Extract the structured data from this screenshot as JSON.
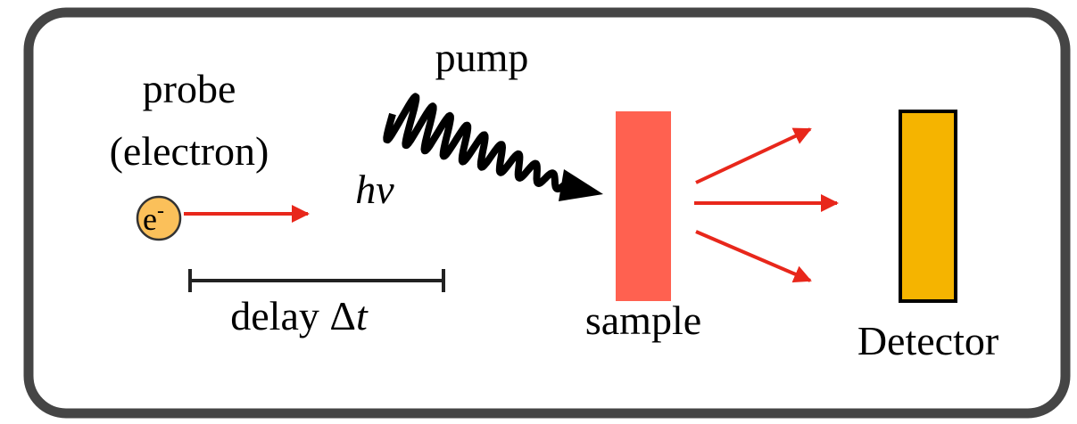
{
  "probe": {
    "title": "probe",
    "subtitle": "(electron)",
    "particle": "e",
    "charge": "-"
  },
  "pump": {
    "title": "pump",
    "photon": "hν"
  },
  "delay": {
    "label": "delay Δ",
    "variable": "t"
  },
  "sample": {
    "label": "sample"
  },
  "detector": {
    "label": "Detector"
  }
}
